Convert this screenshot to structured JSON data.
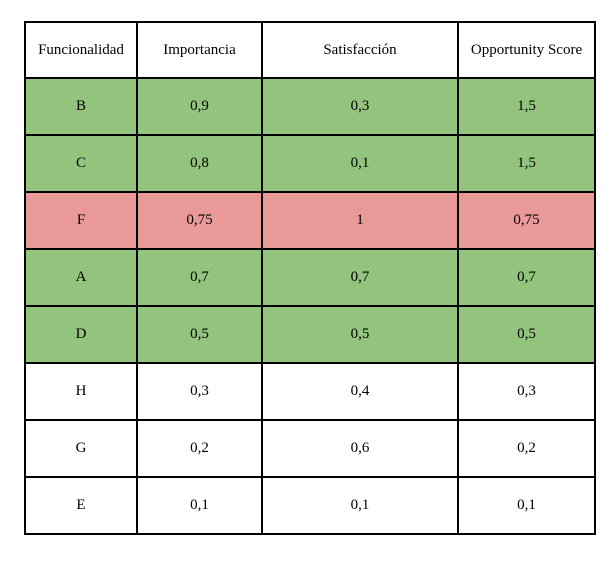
{
  "table": {
    "columns": [
      "Funcionalidad",
      "Importancia",
      "Satisfacción",
      "Opportunity Score"
    ],
    "rows": [
      {
        "cells": [
          "B",
          "0,9",
          "0,3",
          "1,5"
        ],
        "highlight": "green"
      },
      {
        "cells": [
          "C",
          "0,8",
          "0,1",
          "1,5"
        ],
        "highlight": "green"
      },
      {
        "cells": [
          "F",
          "0,75",
          "1",
          "0,75"
        ],
        "highlight": "red"
      },
      {
        "cells": [
          "A",
          "0,7",
          "0,7",
          "0,7"
        ],
        "highlight": "green"
      },
      {
        "cells": [
          "D",
          "0,5",
          "0,5",
          "0,5"
        ],
        "highlight": "green"
      },
      {
        "cells": [
          "H",
          "0,3",
          "0,4",
          "0,3"
        ],
        "highlight": "none"
      },
      {
        "cells": [
          "G",
          "0,2",
          "0,6",
          "0,2"
        ],
        "highlight": "none"
      },
      {
        "cells": [
          "E",
          "0,1",
          "0,1",
          "0,1"
        ],
        "highlight": "none"
      }
    ]
  },
  "colors": {
    "green": "#93c47d",
    "red": "#ea9999",
    "none": "#ffffff",
    "border": "#000000",
    "text": "#000000"
  },
  "chart_data": {
    "type": "table",
    "title": "",
    "columns": [
      "Funcionalidad",
      "Importancia",
      "Satisfacción",
      "Opportunity Score"
    ],
    "rows": [
      [
        "B",
        0.9,
        0.3,
        1.5
      ],
      [
        "C",
        0.8,
        0.1,
        1.5
      ],
      [
        "F",
        0.75,
        1,
        0.75
      ],
      [
        "A",
        0.7,
        0.7,
        0.7
      ],
      [
        "D",
        0.5,
        0.5,
        0.5
      ],
      [
        "H",
        0.3,
        0.4,
        0.3
      ],
      [
        "G",
        0.2,
        0.6,
        0.2
      ],
      [
        "E",
        0.1,
        0.1,
        0.1
      ]
    ],
    "row_highlights": [
      "green",
      "green",
      "red",
      "green",
      "green",
      "none",
      "none",
      "none"
    ],
    "decimal_separator": ","
  }
}
